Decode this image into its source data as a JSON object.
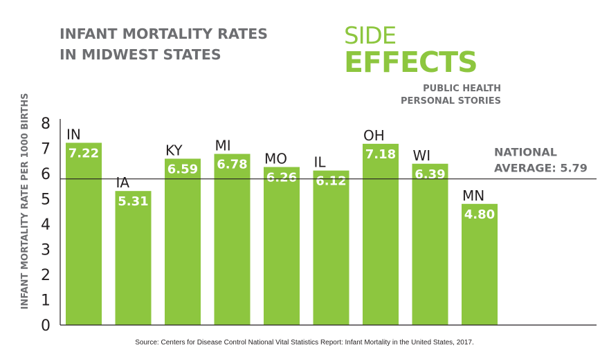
{
  "chart_data": {
    "type": "bar",
    "title_lines": [
      "INFANT MORTALITY RATES",
      "IN MIDWEST STATES"
    ],
    "xlabel": "",
    "ylabel": "INFANT MORTALITY RATE PER 1000 BIRTHS",
    "ylim": [
      0,
      8
    ],
    "yticks": [
      "0",
      "1",
      "2",
      "3",
      "4",
      "5",
      "6",
      "7",
      "8"
    ],
    "categories": [
      "IN",
      "IA",
      "KY",
      "MI",
      "MO",
      "IL",
      "OH",
      "WI",
      "MN"
    ],
    "values": [
      7.22,
      5.31,
      6.59,
      6.78,
      6.26,
      6.12,
      7.18,
      6.39,
      4.8
    ],
    "value_labels": [
      "7.22",
      "5.31",
      "6.59",
      "6.78",
      "6.26",
      "6.12",
      "7.18",
      "6.39",
      "4.80"
    ],
    "reference_line": {
      "value": 5.79,
      "label_lines": [
        "NATIONAL",
        "AVERAGE: 5.79"
      ]
    },
    "bar_color": "#8dc63f",
    "text_color": "#6d6e71",
    "grid": false,
    "legend": "none",
    "source": "Source: Centers for Disease Control National Vital Statistics Report: Infant Mortality in the United States, 2017."
  },
  "brand": {
    "line1": "SIDE",
    "line2": "EFFECTS",
    "tagline": [
      "PUBLIC HEALTH",
      "PERSONAL STORIES"
    ],
    "color": "#8dc63f"
  }
}
